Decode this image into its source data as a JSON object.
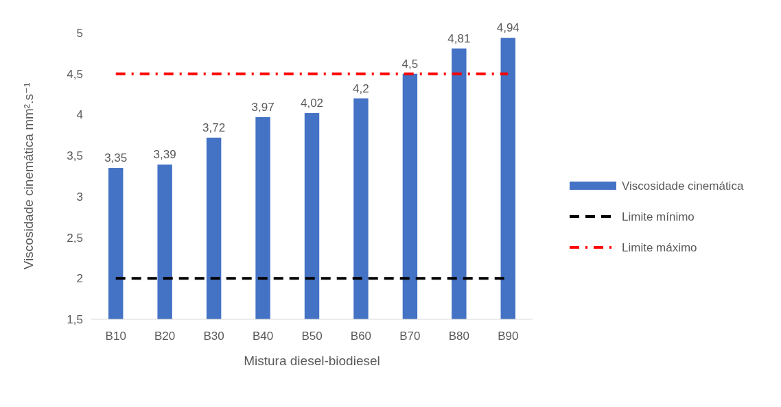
{
  "chart_data": {
    "type": "bar",
    "xlabel": "Mistura diesel-biodiesel",
    "ylabel": "Viscosidade cinemática mm².s⁻¹",
    "categories": [
      "B10",
      "B20",
      "B30",
      "B40",
      "B50",
      "B60",
      "B70",
      "B80",
      "B90"
    ],
    "series": [
      {
        "name": "Viscosidade cinemática",
        "color": "#4472c4",
        "values": [
          3.35,
          3.39,
          3.72,
          3.97,
          4.02,
          4.2,
          4.5,
          4.81,
          4.94
        ],
        "value_labels": [
          "3,35",
          "3,39",
          "3,72",
          "3,97",
          "4,02",
          "4,2",
          "4,5",
          "4,81",
          "4,94"
        ]
      },
      {
        "name": "Limite mínimo",
        "type": "line",
        "color": "#000000",
        "line_style": "dashed",
        "values": [
          2,
          2,
          2,
          2,
          2,
          2,
          2,
          2,
          2
        ]
      },
      {
        "name": "Limite máximo",
        "type": "line",
        "color": "#ff0000",
        "line_style": "dotted",
        "values": [
          4.5,
          4.5,
          4.5,
          4.5,
          4.5,
          4.5,
          4.5,
          4.5,
          4.5
        ]
      }
    ],
    "ylim": [
      1.5,
      5
    ],
    "yticks": [
      {
        "value": 1.5,
        "label": "1,5"
      },
      {
        "value": 2,
        "label": "2"
      },
      {
        "value": 2.5,
        "label": "2,5"
      },
      {
        "value": 3,
        "label": "3"
      },
      {
        "value": 3.5,
        "label": "3,5"
      },
      {
        "value": 4,
        "label": "4"
      },
      {
        "value": 4.5,
        "label": "4,5"
      },
      {
        "value": 5,
        "label": "5"
      }
    ],
    "legend": "right"
  }
}
